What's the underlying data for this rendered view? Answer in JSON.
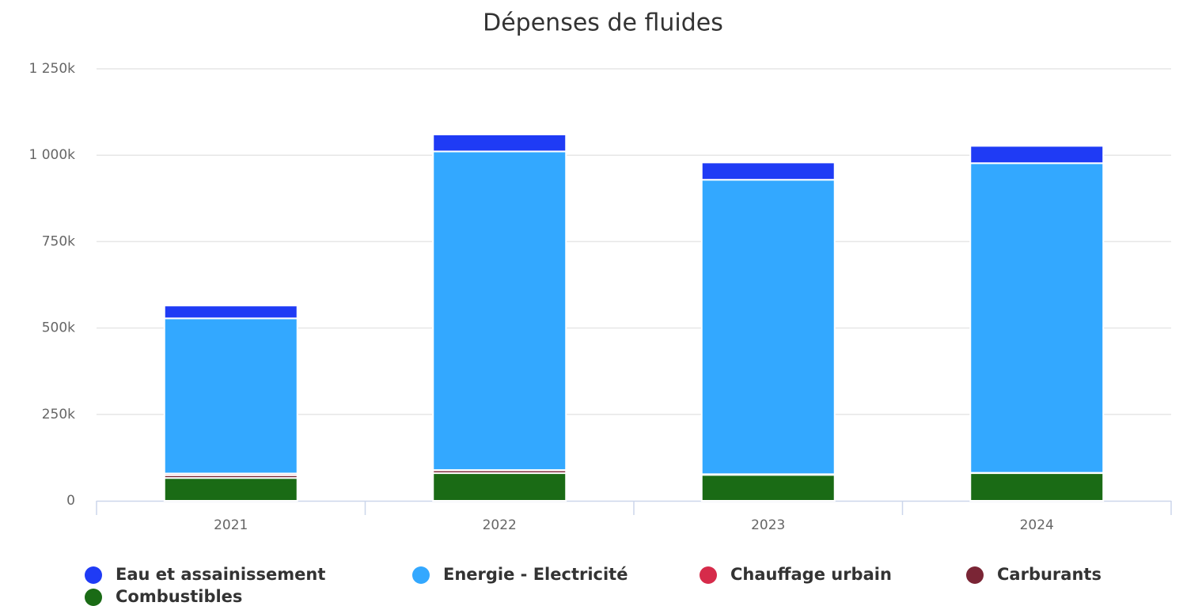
{
  "chart_data": {
    "type": "stacked_bar",
    "title": "Dépenses de fluides",
    "categories": [
      "2021",
      "2022",
      "2023",
      "2024"
    ],
    "series": [
      {
        "name": "Eau et assainissement",
        "color": "#1f3bf5",
        "values": [
          37000,
          49000,
          50000,
          50000
        ]
      },
      {
        "name": "Energie - Electricité",
        "color": "#33a8ff",
        "values": [
          449000,
          922000,
          852000,
          896000
        ]
      },
      {
        "name": "Chauffage urbain",
        "color": "#d62b4a",
        "values": [
          5000,
          1000,
          0,
          0
        ]
      },
      {
        "name": "Carburants",
        "color": "#7a2535",
        "values": [
          8000,
          8000,
          2000,
          1000
        ]
      },
      {
        "name": "Combustibles",
        "color": "#1a6b15",
        "values": [
          66000,
          80000,
          75000,
          80000
        ]
      }
    ],
    "ylim": [
      0,
      1250000
    ],
    "yticks": [
      0,
      {
        "value": 250000,
        "label": "250k"
      },
      {
        "value": 500000,
        "label": "500k"
      },
      {
        "value": 750000,
        "label": "750k"
      },
      {
        "value": 1000000,
        "label": "1 000k"
      },
      {
        "value": 1250000,
        "label": "1 250k"
      }
    ],
    "grid": true,
    "legend": "bottom"
  }
}
